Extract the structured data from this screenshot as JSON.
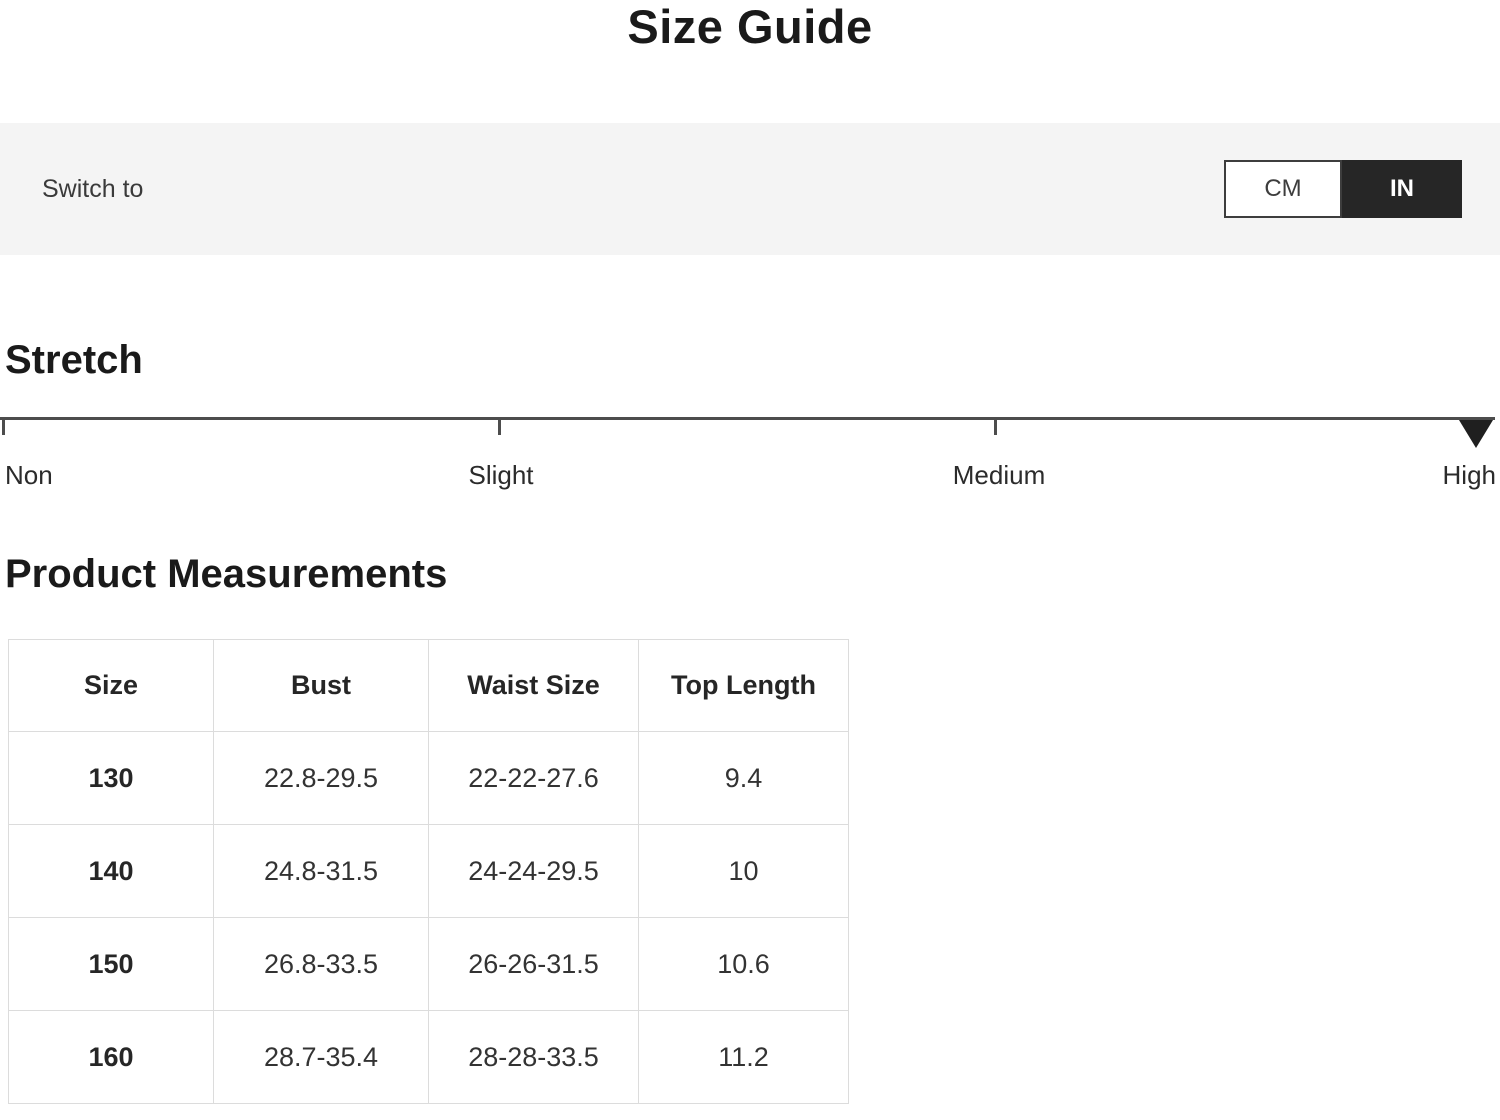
{
  "title": "Size Guide",
  "unit_bar": {
    "label": "Switch to",
    "options": [
      {
        "label": "CM",
        "selected": false
      },
      {
        "label": "IN",
        "selected": true
      }
    ]
  },
  "stretch": {
    "heading": "Stretch",
    "levels": [
      "Non",
      "Slight",
      "Medium",
      "High"
    ],
    "selected_level": "High"
  },
  "measurements": {
    "heading": "Product Measurements",
    "columns": [
      "Size",
      "Bust",
      "Waist Size",
      "Top Length"
    ],
    "rows": [
      [
        "130",
        "22.8-29.5",
        "22-22-27.6",
        "9.4"
      ],
      [
        "140",
        "24.8-31.5",
        "24-24-29.5",
        "10"
      ],
      [
        "150",
        "26.8-33.5",
        "26-26-31.5",
        "10.6"
      ],
      [
        "160",
        "28.7-35.4",
        "28-28-33.5",
        "11.2"
      ]
    ]
  },
  "colors": {
    "selected_toggle_bg": "#262626",
    "bar_bg": "#f4f4f4",
    "table_border": "#dcdcdc",
    "slider_line": "#4d4d4d"
  }
}
